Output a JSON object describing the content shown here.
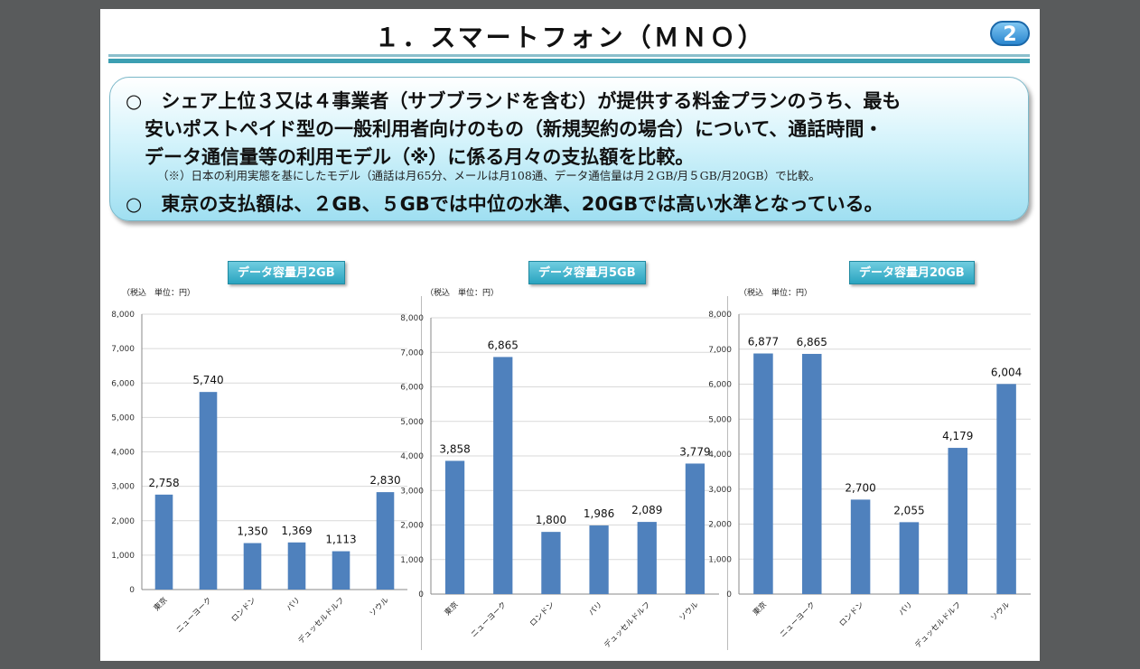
{
  "page": {
    "title": "１．スマートフォン（ＭＮＯ）",
    "page_number": "2"
  },
  "summary": {
    "line1": "○　シェア上位３又は４事業者（サブブランドを含む）が提供する料金プランのうち、最も",
    "line2": "　安いポストペイド型の一般利用者向けのもの（新規契約の場合）について、通話時間・",
    "line3": "　データ通信量等の利用モデル（※）に係る月々の支払額を比較。",
    "note": "（※）日本の利用実態を基にしたモデル（通話は月65分、メールは月108通、データ通信量は月２GB/月５GB/月20GB）で比較。",
    "line4": "○　東京の支払額は、２GB、５GBでは中位の水準、20GBでは高い水準となっている。"
  },
  "colors": {
    "bar": "#4f81bd",
    "grid": "#d9d9d9",
    "accent": "#2aa4c0"
  },
  "chart_data": [
    {
      "type": "bar",
      "title": "データ容量月2GB",
      "unit_label": "（税込　単位：円）",
      "categories": [
        "東京",
        "ニューヨーク",
        "ロンドン",
        "パリ",
        "デュッセルドルフ",
        "ソウル"
      ],
      "values": [
        2758,
        5740,
        1350,
        1369,
        1113,
        2830
      ],
      "value_labels": [
        "2,758",
        "5,740",
        "1,350",
        "1,369",
        "1,113",
        "2,830"
      ],
      "yticks": [
        "0",
        "1,000",
        "2,000",
        "3,000",
        "4,000",
        "5,000",
        "6,000",
        "7,000",
        "8,000"
      ],
      "ylim": [
        0,
        8000
      ],
      "grid": true
    },
    {
      "type": "bar",
      "title": "データ容量月5GB",
      "unit_label": "（税込　単位：円）",
      "categories": [
        "東京",
        "ニューヨーク",
        "ロンドン",
        "パリ",
        "デュッセルドルフ",
        "ソウル"
      ],
      "values": [
        3858,
        6865,
        1800,
        1986,
        2089,
        3779
      ],
      "value_labels": [
        "3,858",
        "6,865",
        "1,800",
        "1,986",
        "2,089",
        "3,779"
      ],
      "yticks": [
        "0",
        "1,000",
        "2,000",
        "3,000",
        "4,000",
        "5,000",
        "6,000",
        "7,000",
        "8,000"
      ],
      "ylim": [
        0,
        8000
      ],
      "grid": true
    },
    {
      "type": "bar",
      "title": "データ容量月20GB",
      "unit_label": "（税込　単位：円）",
      "categories": [
        "東京",
        "ニューヨーク",
        "ロンドン",
        "パリ",
        "デュッセルドルフ",
        "ソウル"
      ],
      "values": [
        6877,
        6865,
        2700,
        2055,
        4179,
        6004
      ],
      "value_labels": [
        "6,877",
        "6,865",
        "2,700",
        "2,055",
        "4,179",
        "6,004"
      ],
      "yticks": [
        "0",
        "1,000",
        "2,000",
        "3,000",
        "4,000",
        "5,000",
        "6,000",
        "7,000",
        "8,000"
      ],
      "ylim": [
        0,
        8000
      ],
      "grid": true
    }
  ]
}
